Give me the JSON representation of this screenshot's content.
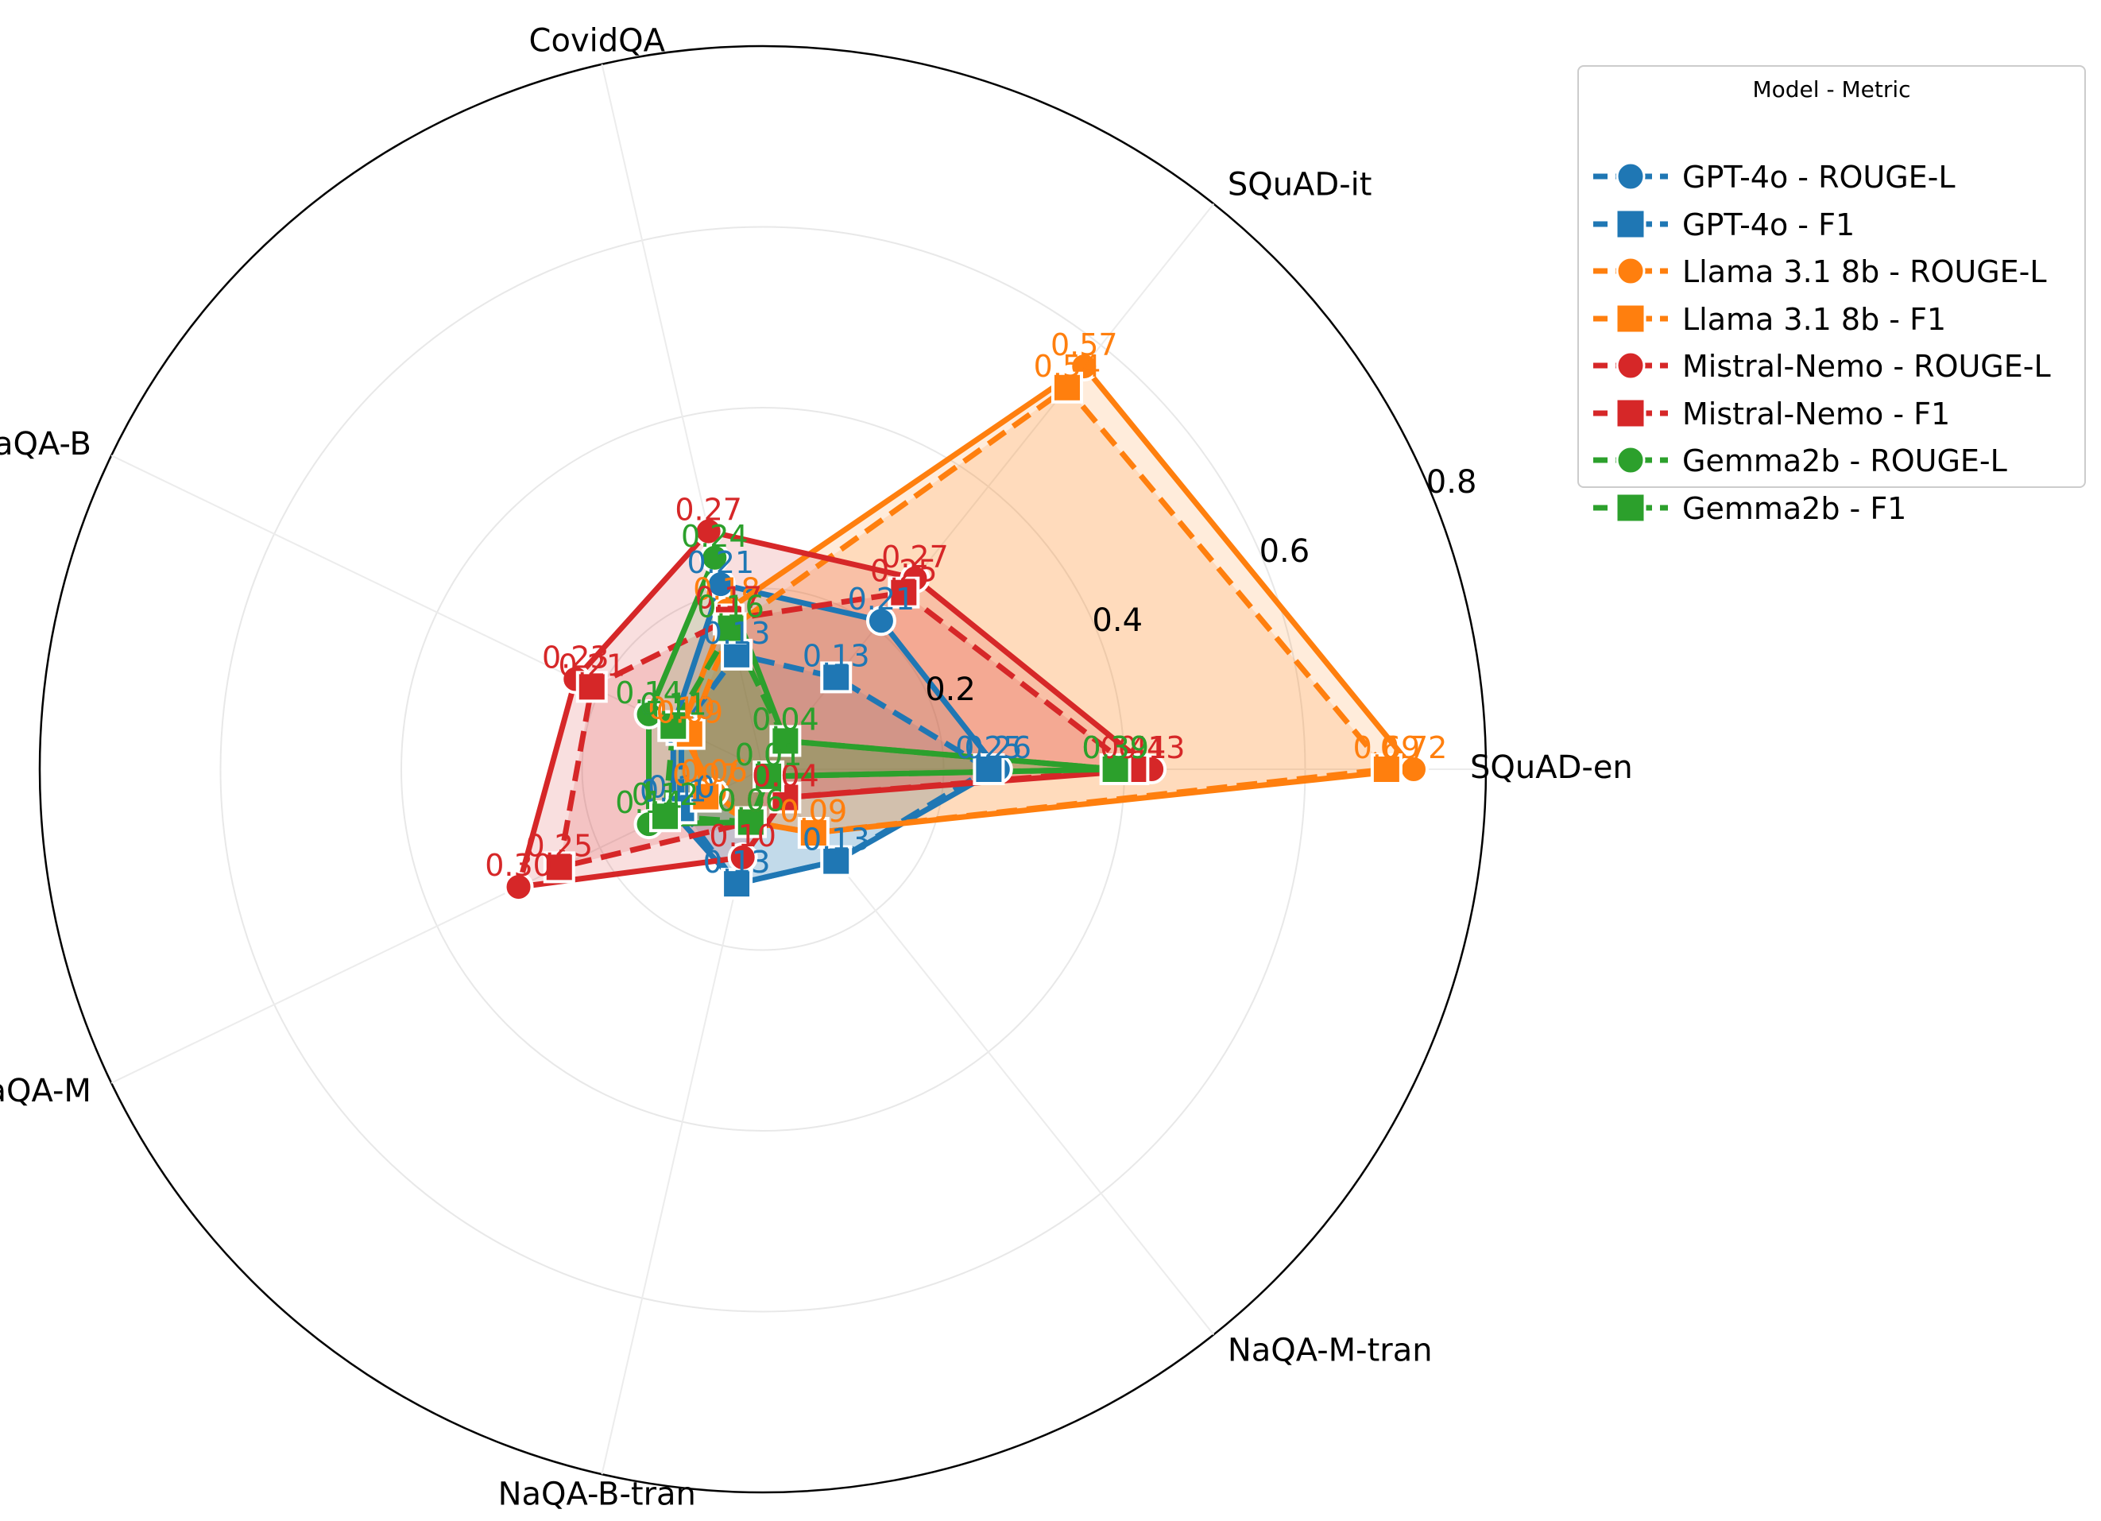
{
  "chart_data": {
    "type": "radar",
    "categories": [
      "SQuAD-en",
      "SQuAD-it",
      "CovidQA",
      "NaQA-B",
      "NaQA-M",
      "NaQA-B-tran",
      "NaQA-M-tran"
    ],
    "radial_ticks": [
      "0.2",
      "0.4",
      "0.6",
      "0.8"
    ],
    "rlim": [
      0,
      0.8
    ],
    "legend_title": "Model - Metric",
    "legend_position": "upper right, outside",
    "series": [
      {
        "name": "GPT-4o - ROUGE-L",
        "color": "#1f77b4",
        "marker": "circle",
        "dash": "solid",
        "values": [
          0.26,
          0.21,
          0.21,
          0.11,
          0.11,
          0.13,
          0.13
        ],
        "fill_opacity": 0.15
      },
      {
        "name": "GPT-4o - F1",
        "color": "#1f77b4",
        "marker": "square",
        "dash": "dashed",
        "values": [
          0.25,
          0.13,
          0.13,
          0.1,
          0.1,
          0.13,
          0.13
        ],
        "fill_opacity": 0.15
      },
      {
        "name": "Llama 3.1 8b - ROUGE-L",
        "color": "#ff7f0e",
        "marker": "circle",
        "dash": "solid",
        "values": [
          0.72,
          0.57,
          0.18,
          0.1,
          0.06,
          0.06,
          0.09
        ],
        "fill_opacity": 0.15
      },
      {
        "name": "Llama 3.1 8b - F1",
        "color": "#ff7f0e",
        "marker": "square",
        "dash": "dashed",
        "values": [
          0.69,
          0.54,
          0.16,
          0.09,
          0.07,
          0.06,
          0.09
        ],
        "fill_opacity": 0.15
      },
      {
        "name": "Mistral-Nemo - ROUGE-L",
        "color": "#d62728",
        "marker": "circle",
        "dash": "solid",
        "values": [
          0.43,
          0.27,
          0.27,
          0.23,
          0.3,
          0.1,
          0.04
        ],
        "fill_opacity": 0.15
      },
      {
        "name": "Mistral-Nemo - F1",
        "color": "#d62728",
        "marker": "square",
        "dash": "dashed",
        "values": [
          0.41,
          0.25,
          0.17,
          0.21,
          0.25,
          0.06,
          0.04
        ],
        "fill_opacity": 0.15
      },
      {
        "name": "Gemma2b - ROUGE-L",
        "color": "#2ca02c",
        "marker": "circle",
        "dash": "solid",
        "values": [
          0.39,
          0.04,
          0.24,
          0.14,
          0.14,
          0.06,
          0.01
        ],
        "fill_opacity": 0.15
      },
      {
        "name": "Gemma2b - F1",
        "color": "#2ca02c",
        "marker": "square",
        "dash": "dashed",
        "values": [
          0.39,
          0.04,
          0.16,
          0.11,
          0.12,
          0.06,
          0.01
        ],
        "fill_opacity": 0.15
      }
    ]
  }
}
